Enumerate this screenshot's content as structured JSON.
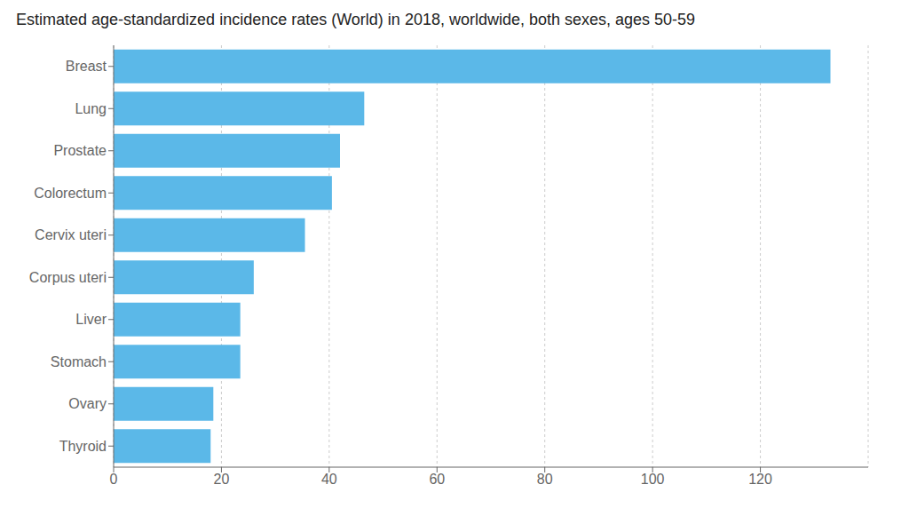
{
  "chart_data": {
    "type": "bar",
    "orientation": "horizontal",
    "title": "Estimated age-standardized incidence rates (World) in 2018, worldwide, both sexes, ages 50-59",
    "categories": [
      "Breast",
      "Lung",
      "Prostate",
      "Colorectum",
      "Cervix uteri",
      "Corpus uteri",
      "Liver",
      "Stomach",
      "Ovary",
      "Thyroid"
    ],
    "values": [
      133,
      46.5,
      42,
      40.5,
      35.5,
      26,
      23.5,
      23.5,
      18.5,
      18
    ],
    "color": "#5BB8E8",
    "xlim": [
      0,
      140
    ],
    "xticks": [
      0,
      20,
      40,
      60,
      80,
      100,
      120
    ],
    "grid": true
  }
}
